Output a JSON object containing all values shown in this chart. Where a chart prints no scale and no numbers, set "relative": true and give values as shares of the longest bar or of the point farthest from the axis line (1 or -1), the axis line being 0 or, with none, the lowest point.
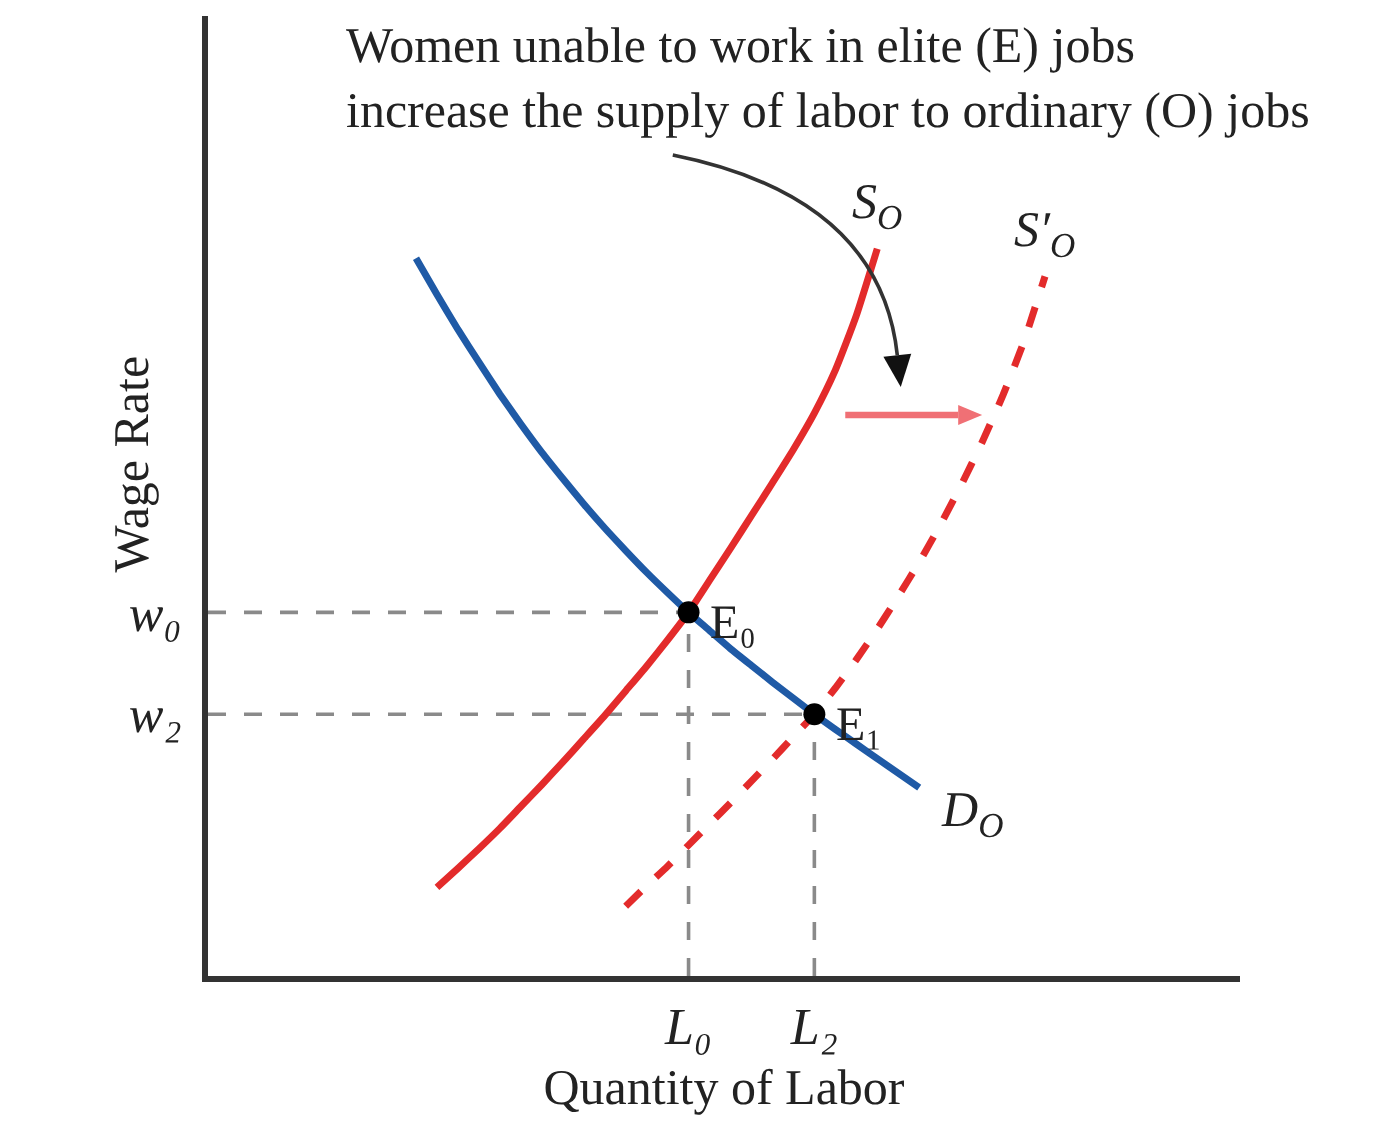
{
  "chart_data": {
    "type": "line",
    "relative": true,
    "xlabel": "Quantity of Labor",
    "ylabel": "Wage Rate",
    "categories": [
      null,
      null,
      null,
      null,
      null,
      null,
      null,
      null,
      null,
      null,
      null,
      null,
      null,
      "L₀",
      null,
      null,
      null,
      null,
      null,
      "L₂",
      null,
      null,
      null,
      null,
      null,
      null,
      null,
      null,
      null,
      null,
      null
    ],
    "series": [
      {
        "name": "D$_{O}$",
        "color": "#1f5aa6",
        "line_style": "solid",
        "values": [
          0.987,
          0.937,
          0.889,
          0.844,
          0.8,
          0.759,
          0.72,
          0.684,
          0.649,
          0.616,
          0.585,
          0.555,
          0.527,
          0.5,
          0.475,
          0.45,
          0.427,
          0.404,
          0.382,
          0.36,
          0.339,
          0.319,
          0.299,
          0.279,
          0.259,
          null,
          null,
          null,
          null,
          null,
          null
        ]
      },
      {
        "name": "S$_{O}$",
        "color": "#e32b2b",
        "line_style": "solid",
        "values": [
          null,
          0.122,
          0.148,
          0.175,
          0.203,
          0.233,
          0.263,
          0.294,
          0.326,
          0.358,
          0.392,
          0.426,
          0.462,
          0.5,
          0.544,
          0.588,
          0.633,
          0.678,
          0.724,
          0.774,
          0.833,
          0.908,
          1.0,
          null,
          null,
          null,
          null,
          null,
          null,
          null,
          null
        ]
      },
      {
        "name": "S′$_{O}$",
        "color": "#e32b2b",
        "line_style": "dashed",
        "values": [
          null,
          null,
          null,
          null,
          null,
          null,
          null,
          null,
          null,
          null,
          0.096,
          0.124,
          0.151,
          0.18,
          0.209,
          0.238,
          0.268,
          0.298,
          0.329,
          0.36,
          0.396,
          0.435,
          0.477,
          0.522,
          0.569,
          0.62,
          0.675,
          0.734,
          0.799,
          0.873,
          0.962
        ]
      },
      {
        "type": "lollipop",
        "color": "#000000",
        "marker": "circle",
        "line_style": "dashed",
        "values": [
          null,
          null,
          null,
          null,
          null,
          null,
          null,
          null,
          null,
          null,
          null,
          null,
          null,
          0.5,
          null,
          null,
          null,
          null,
          null,
          0.36,
          null,
          null,
          null,
          null,
          null,
          null,
          null,
          null,
          null,
          null,
          null
        ]
      }
    ],
    "ref_lines": [
      {
        "axis": "y",
        "value": 0.5,
        "label": "w₀",
        "line_style": "dashed",
        "color": "#8a8a8a"
      },
      {
        "axis": "y",
        "value": 0.36,
        "label": "w₂",
        "line_style": "dashed",
        "color": "#8a8a8a"
      }
    ],
    "annotations": [
      "Women unable to work in elite (E) jobs\nincrease the supply of labor to ordinary (O) jobs",
      {
        "text": "E₀",
        "x": "L₀",
        "y": 0.5
      },
      {
        "text": "E₁",
        "x": "L₂",
        "y": 0.36
      }
    ]
  }
}
